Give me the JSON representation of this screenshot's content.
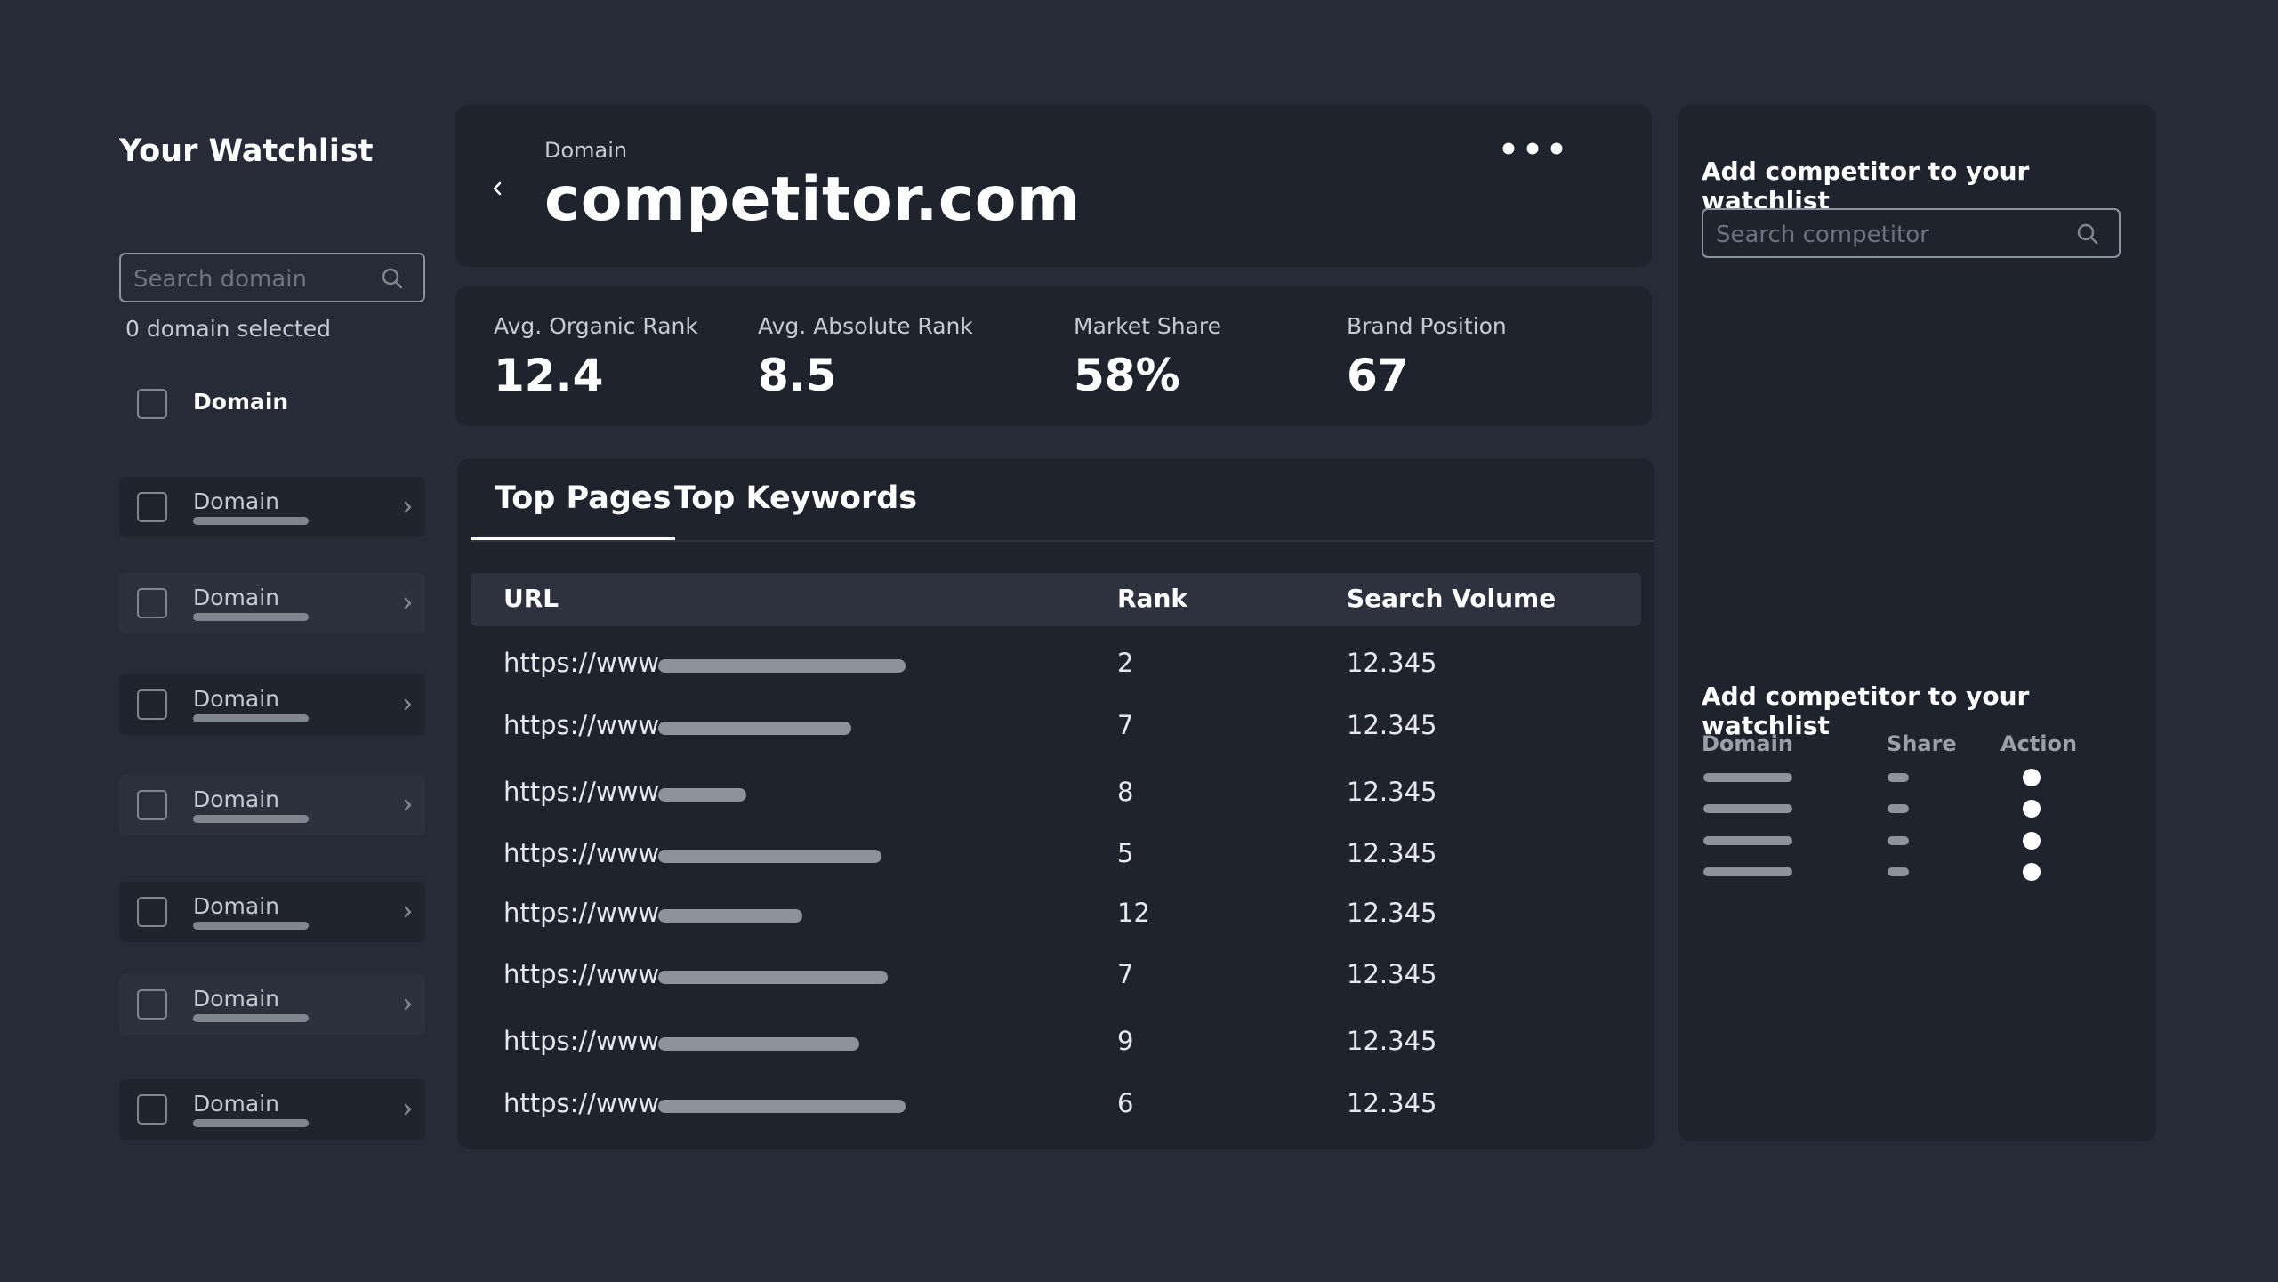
{
  "watchlist": {
    "title": "Your Watchlist",
    "search_placeholder": "Search domain",
    "selected_count": "0 domain selected",
    "header_label": "Domain",
    "items": [
      {
        "label": "Domain"
      },
      {
        "label": "Domain"
      },
      {
        "label": "Domain"
      },
      {
        "label": "Domain"
      },
      {
        "label": "Domain"
      },
      {
        "label": "Domain"
      },
      {
        "label": "Domain"
      }
    ]
  },
  "header": {
    "kicker": "Domain",
    "title": "competitor.com"
  },
  "metrics": [
    {
      "label": "Avg. Organic Rank",
      "value": "12.4"
    },
    {
      "label": "Avg. Absolute Rank",
      "value": "8.5"
    },
    {
      "label": "Market Share",
      "value": "58%"
    },
    {
      "label": "Brand Position",
      "value": "67"
    }
  ],
  "tabs": [
    {
      "label": "Top Pages",
      "active": true
    },
    {
      "label": "Top Keywords",
      "active": false
    }
  ],
  "table": {
    "columns": [
      "URL",
      "Rank",
      "Search Volume"
    ],
    "rows": [
      {
        "url": "https://www",
        "rank": "2",
        "volume": "12.345"
      },
      {
        "url": "https://www",
        "rank": "7",
        "volume": "12.345"
      },
      {
        "url": "https://www",
        "rank": "8",
        "volume": "12.345"
      },
      {
        "url": "https://www",
        "rank": "5",
        "volume": "12.345"
      },
      {
        "url": "https://www",
        "rank": "12",
        "volume": "12.345"
      },
      {
        "url": "https://www",
        "rank": "7",
        "volume": "12.345"
      },
      {
        "url": "https://www",
        "rank": "9",
        "volume": "12.345"
      },
      {
        "url": "https://www",
        "rank": "6",
        "volume": "12.345"
      }
    ]
  },
  "right_panel": {
    "add_title": "Add competitor to your watchlist",
    "search_placeholder": "Search competitor",
    "list_title": "Add competitor to your watchlist",
    "columns": [
      "Domain",
      "Share",
      "Action"
    ]
  },
  "icons": {
    "search": "search-icon",
    "back": "chevron-left-icon",
    "more": "more-horizontal-icon",
    "row_chevron": "chevron-right-icon"
  },
  "colors": {
    "background": "#262b37",
    "card": "#1e232d",
    "muted_text": "#c5cad3",
    "placeholder_bar": "#8d929b"
  }
}
